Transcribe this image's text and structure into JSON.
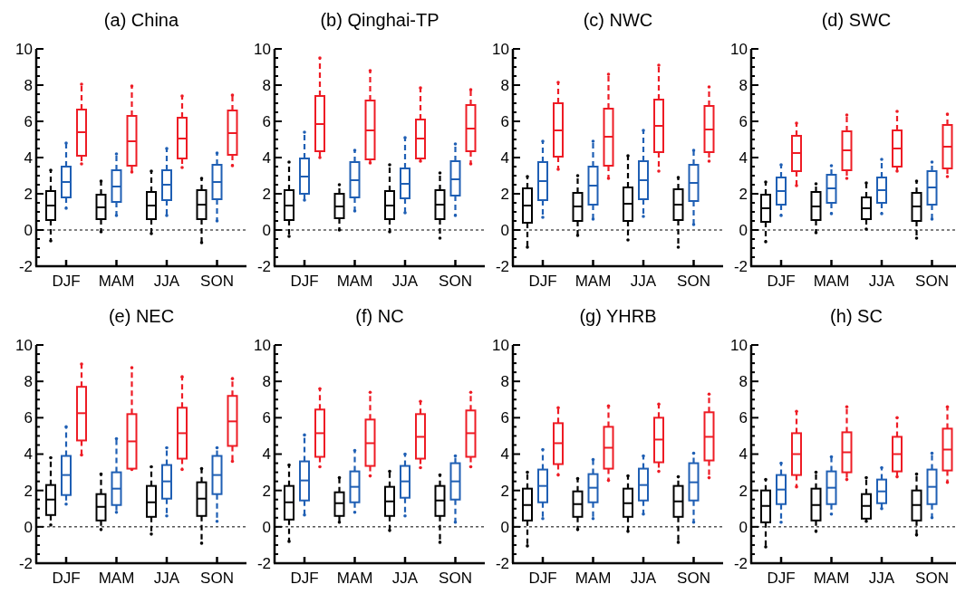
{
  "chart_data": [
    {
      "type": "box",
      "title": "(a) China",
      "categories": [
        "DJF",
        "MAM",
        "JJA",
        "SON"
      ],
      "ylim": [
        -2,
        10
      ],
      "yticks": [
        -2,
        {
          "value": -1.5,
          "label": null
        },
        {
          "value": -1,
          "label": null
        },
        {
          "value": -0.5,
          "label": null
        },
        0,
        {
          "value": 0.5,
          "label": null
        },
        {
          "value": 1,
          "label": null
        },
        {
          "value": 1.5,
          "label": null
        },
        2,
        {
          "value": 2.5,
          "label": null
        },
        {
          "value": 3,
          "label": null
        },
        {
          "value": 3.5,
          "label": null
        },
        4,
        {
          "value": 4.5,
          "label": null
        },
        {
          "value": 5,
          "label": null
        },
        {
          "value": 5.5,
          "label": null
        },
        6,
        {
          "value": 6.5,
          "label": null
        },
        {
          "value": 7,
          "label": null
        },
        {
          "value": 7.5,
          "label": null
        },
        8,
        {
          "value": 8.5,
          "label": null
        },
        {
          "value": 9,
          "label": null
        },
        {
          "value": 9.5,
          "label": null
        },
        10
      ],
      "grid": false,
      "line_style": "dashed",
      "ref_lines": [
        {
          "axis": "y",
          "value": 0,
          "color": "#000000",
          "line_style": "dashed"
        }
      ],
      "series": [
        {
          "color": "#000000",
          "boxes": [
            {
              "low": -0.6,
              "q1": 0.55,
              "median": 1.35,
              "q3": 2.15,
              "high": 3.3
            },
            {
              "low": -0.1,
              "q1": 0.6,
              "median": 1.25,
              "q3": 1.95,
              "high": 2.7
            },
            {
              "low": -0.2,
              "q1": 0.6,
              "median": 1.35,
              "q3": 2.1,
              "high": 3.25
            },
            {
              "low": -0.7,
              "q1": 0.6,
              "median": 1.4,
              "q3": 2.2,
              "high": 2.85
            }
          ]
        },
        {
          "color": "#1f5fb4",
          "boxes": [
            {
              "low": 1.2,
              "q1": 1.8,
              "median": 2.65,
              "q3": 3.5,
              "high": 4.8
            },
            {
              "low": 0.8,
              "q1": 1.55,
              "median": 2.4,
              "q3": 3.3,
              "high": 4.2
            },
            {
              "low": 0.8,
              "q1": 1.65,
              "median": 2.5,
              "q3": 3.3,
              "high": 4.5
            },
            {
              "low": 0.5,
              "q1": 1.7,
              "median": 2.65,
              "q3": 3.6,
              "high": 4.25
            }
          ]
        },
        {
          "color": "#ee1c25",
          "boxes": [
            {
              "low": 3.65,
              "q1": 4.1,
              "median": 5.4,
              "q3": 6.65,
              "high": 8.05
            },
            {
              "low": 3.2,
              "q1": 3.55,
              "median": 4.9,
              "q3": 6.3,
              "high": 7.95
            },
            {
              "low": 3.45,
              "q1": 3.95,
              "median": 5.05,
              "q3": 6.2,
              "high": 7.4
            },
            {
              "low": 3.55,
              "q1": 4.15,
              "median": 5.35,
              "q3": 6.6,
              "high": 7.45
            }
          ]
        }
      ]
    },
    {
      "type": "box",
      "title": "(b) Qinghai-TP",
      "categories": [
        "DJF",
        "MAM",
        "JJA",
        "SON"
      ],
      "ylim": [
        -2,
        10
      ],
      "yticks": [
        -2,
        {
          "value": -1.5,
          "label": null
        },
        {
          "value": -1,
          "label": null
        },
        {
          "value": -0.5,
          "label": null
        },
        0,
        {
          "value": 0.5,
          "label": null
        },
        {
          "value": 1,
          "label": null
        },
        {
          "value": 1.5,
          "label": null
        },
        2,
        {
          "value": 2.5,
          "label": null
        },
        {
          "value": 3,
          "label": null
        },
        {
          "value": 3.5,
          "label": null
        },
        4,
        {
          "value": 4.5,
          "label": null
        },
        {
          "value": 5,
          "label": null
        },
        {
          "value": 5.5,
          "label": null
        },
        6,
        {
          "value": 6.5,
          "label": null
        },
        {
          "value": 7,
          "label": null
        },
        {
          "value": 7.5,
          "label": null
        },
        8,
        {
          "value": 8.5,
          "label": null
        },
        {
          "value": 9,
          "label": null
        },
        {
          "value": 9.5,
          "label": null
        },
        10
      ],
      "grid": false,
      "line_style": "dashed",
      "ref_lines": [
        {
          "axis": "y",
          "value": 0,
          "color": "#000000",
          "line_style": "dashed"
        }
      ],
      "series": [
        {
          "color": "#000000",
          "boxes": [
            {
              "low": -0.35,
              "q1": 0.55,
              "median": 1.35,
              "q3": 2.2,
              "high": 3.75
            },
            {
              "low": 0.0,
              "q1": 0.65,
              "median": 1.3,
              "q3": 2.0,
              "high": 2.5
            },
            {
              "low": -0.1,
              "q1": 0.6,
              "median": 1.35,
              "q3": 2.15,
              "high": 3.6
            },
            {
              "low": -0.45,
              "q1": 0.6,
              "median": 1.4,
              "q3": 2.2,
              "high": 3.15
            }
          ]
        },
        {
          "color": "#1f5fb4",
          "boxes": [
            {
              "low": 1.65,
              "q1": 2.0,
              "median": 2.95,
              "q3": 3.95,
              "high": 5.4
            },
            {
              "low": 1.05,
              "q1": 1.8,
              "median": 2.75,
              "q3": 3.75,
              "high": 4.4
            },
            {
              "low": 0.95,
              "q1": 1.75,
              "median": 2.55,
              "q3": 3.4,
              "high": 5.1
            },
            {
              "low": 0.8,
              "q1": 1.9,
              "median": 2.8,
              "q3": 3.8,
              "high": 4.75
            }
          ]
        },
        {
          "color": "#ee1c25",
          "boxes": [
            {
              "low": 4.0,
              "q1": 4.35,
              "median": 5.85,
              "q3": 7.4,
              "high": 9.5
            },
            {
              "low": 3.7,
              "q1": 3.9,
              "median": 5.5,
              "q3": 7.15,
              "high": 8.8
            },
            {
              "low": 3.8,
              "q1": 3.95,
              "median": 5.05,
              "q3": 6.1,
              "high": 7.85
            },
            {
              "low": 3.65,
              "q1": 4.35,
              "median": 5.6,
              "q3": 6.9,
              "high": 7.75
            }
          ]
        }
      ]
    },
    {
      "type": "box",
      "title": "(c) NWC",
      "categories": [
        "DJF",
        "MAM",
        "JJA",
        "SON"
      ],
      "ylim": [
        -2,
        10
      ],
      "yticks": [
        -2,
        {
          "value": -1.5,
          "label": null
        },
        {
          "value": -1,
          "label": null
        },
        {
          "value": -0.5,
          "label": null
        },
        0,
        {
          "value": 0.5,
          "label": null
        },
        {
          "value": 1,
          "label": null
        },
        {
          "value": 1.5,
          "label": null
        },
        2,
        {
          "value": 2.5,
          "label": null
        },
        {
          "value": 3,
          "label": null
        },
        {
          "value": 3.5,
          "label": null
        },
        4,
        {
          "value": 4.5,
          "label": null
        },
        {
          "value": 5,
          "label": null
        },
        {
          "value": 5.5,
          "label": null
        },
        6,
        {
          "value": 6.5,
          "label": null
        },
        {
          "value": 7,
          "label": null
        },
        {
          "value": 7.5,
          "label": null
        },
        8,
        {
          "value": 8.5,
          "label": null
        },
        {
          "value": 9,
          "label": null
        },
        {
          "value": 9.5,
          "label": null
        },
        10
      ],
      "grid": false,
      "line_style": "dashed",
      "ref_lines": [
        {
          "axis": "y",
          "value": 0,
          "color": "#000000",
          "line_style": "dashed"
        }
      ],
      "series": [
        {
          "color": "#000000",
          "boxes": [
            {
              "low": -0.95,
              "q1": 0.4,
              "median": 1.35,
              "q3": 2.3,
              "high": 2.95
            },
            {
              "low": -0.3,
              "q1": 0.5,
              "median": 1.3,
              "q3": 2.05,
              "high": 3.0
            },
            {
              "low": -0.55,
              "q1": 0.5,
              "median": 1.45,
              "q3": 2.35,
              "high": 4.1
            },
            {
              "low": -0.95,
              "q1": 0.55,
              "median": 1.4,
              "q3": 2.25,
              "high": 2.9
            }
          ]
        },
        {
          "color": "#1f5fb4",
          "boxes": [
            {
              "low": 0.7,
              "q1": 1.65,
              "median": 2.7,
              "q3": 3.75,
              "high": 4.9
            },
            {
              "low": 0.6,
              "q1": 1.4,
              "median": 2.45,
              "q3": 3.5,
              "high": 4.9
            },
            {
              "low": 0.75,
              "q1": 1.7,
              "median": 2.75,
              "q3": 3.8,
              "high": 5.5
            },
            {
              "low": 0.3,
              "q1": 1.6,
              "median": 2.6,
              "q3": 3.6,
              "high": 4.4
            }
          ]
        },
        {
          "color": "#ee1c25",
          "boxes": [
            {
              "low": 3.35,
              "q1": 4.05,
              "median": 5.5,
              "q3": 7.0,
              "high": 8.15
            },
            {
              "low": 2.85,
              "q1": 3.55,
              "median": 5.15,
              "q3": 6.7,
              "high": 8.6
            },
            {
              "low": 3.25,
              "q1": 4.3,
              "median": 5.75,
              "q3": 7.2,
              "high": 9.1
            },
            {
              "low": 3.8,
              "q1": 4.3,
              "median": 5.55,
              "q3": 6.85,
              "high": 7.9
            }
          ]
        }
      ]
    },
    {
      "type": "box",
      "title": "(d) SWC",
      "categories": [
        "DJF",
        "MAM",
        "JJA",
        "SON"
      ],
      "ylim": [
        -2,
        10
      ],
      "yticks": [
        -2,
        {
          "value": -1.5,
          "label": null
        },
        {
          "value": -1,
          "label": null
        },
        {
          "value": -0.5,
          "label": null
        },
        0,
        {
          "value": 0.5,
          "label": null
        },
        {
          "value": 1,
          "label": null
        },
        {
          "value": 1.5,
          "label": null
        },
        2,
        {
          "value": 2.5,
          "label": null
        },
        {
          "value": 3,
          "label": null
        },
        {
          "value": 3.5,
          "label": null
        },
        4,
        {
          "value": 4.5,
          "label": null
        },
        {
          "value": 5,
          "label": null
        },
        {
          "value": 5.5,
          "label": null
        },
        6,
        {
          "value": 6.5,
          "label": null
        },
        {
          "value": 7,
          "label": null
        },
        {
          "value": 7.5,
          "label": null
        },
        8,
        {
          "value": 8.5,
          "label": null
        },
        {
          "value": 9,
          "label": null
        },
        {
          "value": 9.5,
          "label": null
        },
        10
      ],
      "grid": false,
      "line_style": "dashed",
      "ref_lines": [
        {
          "axis": "y",
          "value": 0,
          "color": "#000000",
          "line_style": "dashed"
        }
      ],
      "series": [
        {
          "color": "#000000",
          "boxes": [
            {
              "low": -0.65,
              "q1": 0.45,
              "median": 1.2,
              "q3": 1.95,
              "high": 2.65
            },
            {
              "low": -0.15,
              "q1": 0.55,
              "median": 1.3,
              "q3": 2.1,
              "high": 2.55
            },
            {
              "low": 0.05,
              "q1": 0.6,
              "median": 1.2,
              "q3": 1.8,
              "high": 2.6
            },
            {
              "low": -0.45,
              "q1": 0.5,
              "median": 1.3,
              "q3": 2.05,
              "high": 2.7
            }
          ]
        },
        {
          "color": "#1f5fb4",
          "boxes": [
            {
              "low": 0.8,
              "q1": 1.4,
              "median": 2.15,
              "q3": 2.9,
              "high": 3.6
            },
            {
              "low": 0.9,
              "q1": 1.5,
              "median": 2.3,
              "q3": 3.05,
              "high": 3.55
            },
            {
              "low": 0.9,
              "q1": 1.5,
              "median": 2.2,
              "q3": 2.9,
              "high": 3.9
            },
            {
              "low": 0.6,
              "q1": 1.4,
              "median": 2.35,
              "q3": 3.25,
              "high": 3.75
            }
          ]
        },
        {
          "color": "#ee1c25",
          "boxes": [
            {
              "low": 2.45,
              "q1": 3.25,
              "median": 4.25,
              "q3": 5.2,
              "high": 5.9
            },
            {
              "low": 2.85,
              "q1": 3.3,
              "median": 4.4,
              "q3": 5.45,
              "high": 6.35
            },
            {
              "low": 3.25,
              "q1": 3.5,
              "median": 4.5,
              "q3": 5.5,
              "high": 6.55
            },
            {
              "low": 2.95,
              "q1": 3.4,
              "median": 4.6,
              "q3": 5.8,
              "high": 6.4
            }
          ]
        }
      ]
    },
    {
      "type": "box",
      "title": "(e) NEC",
      "categories": [
        "DJF",
        "MAM",
        "JJA",
        "SON"
      ],
      "ylim": [
        -2,
        10
      ],
      "yticks": [
        -2,
        {
          "value": -1.5,
          "label": null
        },
        {
          "value": -1,
          "label": null
        },
        {
          "value": -0.5,
          "label": null
        },
        0,
        {
          "value": 0.5,
          "label": null
        },
        {
          "value": 1,
          "label": null
        },
        {
          "value": 1.5,
          "label": null
        },
        2,
        {
          "value": 2.5,
          "label": null
        },
        {
          "value": 3,
          "label": null
        },
        {
          "value": 3.5,
          "label": null
        },
        4,
        {
          "value": 4.5,
          "label": null
        },
        {
          "value": 5,
          "label": null
        },
        {
          "value": 5.5,
          "label": null
        },
        6,
        {
          "value": 6.5,
          "label": null
        },
        {
          "value": 7,
          "label": null
        },
        {
          "value": 7.5,
          "label": null
        },
        8,
        {
          "value": 8.5,
          "label": null
        },
        {
          "value": 9,
          "label": null
        },
        {
          "value": 9.5,
          "label": null
        },
        10
      ],
      "grid": false,
      "line_style": "dashed",
      "ref_lines": [
        {
          "axis": "y",
          "value": 0,
          "color": "#000000",
          "line_style": "dashed"
        }
      ],
      "series": [
        {
          "color": "#000000",
          "boxes": [
            {
              "low": 0.1,
              "q1": 0.65,
              "median": 1.5,
              "q3": 2.3,
              "high": 3.8
            },
            {
              "low": -0.15,
              "q1": 0.35,
              "median": 1.1,
              "q3": 1.8,
              "high": 2.9
            },
            {
              "low": -0.4,
              "q1": 0.55,
              "median": 1.35,
              "q3": 2.25,
              "high": 3.3
            },
            {
              "low": -0.9,
              "q1": 0.6,
              "median": 1.55,
              "q3": 2.45,
              "high": 3.2
            }
          ]
        },
        {
          "color": "#1f5fb4",
          "boxes": [
            {
              "low": 1.25,
              "q1": 1.75,
              "median": 2.85,
              "q3": 3.9,
              "high": 5.5
            },
            {
              "low": 0.8,
              "q1": 1.2,
              "median": 2.1,
              "q3": 3.0,
              "high": 4.85
            },
            {
              "low": 0.6,
              "q1": 1.55,
              "median": 2.5,
              "q3": 3.4,
              "high": 4.35
            },
            {
              "low": 0.3,
              "q1": 1.8,
              "median": 2.85,
              "q3": 3.9,
              "high": 4.35
            }
          ]
        },
        {
          "color": "#ee1c25",
          "boxes": [
            {
              "low": 3.95,
              "q1": 4.75,
              "median": 6.25,
              "q3": 7.7,
              "high": 8.95
            },
            {
              "low": 3.15,
              "q1": 3.2,
              "median": 4.7,
              "q3": 6.2,
              "high": 8.75
            },
            {
              "low": 3.15,
              "q1": 3.75,
              "median": 5.15,
              "q3": 6.55,
              "high": 8.25
            },
            {
              "low": 3.6,
              "q1": 4.45,
              "median": 5.8,
              "q3": 7.2,
              "high": 8.15
            }
          ]
        }
      ]
    },
    {
      "type": "box",
      "title": "(f) NC",
      "categories": [
        "DJF",
        "MAM",
        "JJA",
        "SON"
      ],
      "ylim": [
        -2,
        10
      ],
      "yticks": [
        -2,
        {
          "value": -1.5,
          "label": null
        },
        {
          "value": -1,
          "label": null
        },
        {
          "value": -0.5,
          "label": null
        },
        0,
        {
          "value": 0.5,
          "label": null
        },
        {
          "value": 1,
          "label": null
        },
        {
          "value": 1.5,
          "label": null
        },
        2,
        {
          "value": 2.5,
          "label": null
        },
        {
          "value": 3,
          "label": null
        },
        {
          "value": 3.5,
          "label": null
        },
        4,
        {
          "value": 4.5,
          "label": null
        },
        {
          "value": 5,
          "label": null
        },
        {
          "value": 5.5,
          "label": null
        },
        6,
        {
          "value": 6.5,
          "label": null
        },
        {
          "value": 7,
          "label": null
        },
        {
          "value": 7.5,
          "label": null
        },
        8,
        {
          "value": 8.5,
          "label": null
        },
        {
          "value": 9,
          "label": null
        },
        {
          "value": 9.5,
          "label": null
        },
        10
      ],
      "grid": false,
      "line_style": "dashed",
      "ref_lines": [
        {
          "axis": "y",
          "value": 0,
          "color": "#000000",
          "line_style": "dashed"
        }
      ],
      "series": [
        {
          "color": "#000000",
          "boxes": [
            {
              "low": -0.8,
              "q1": 0.4,
              "median": 1.35,
              "q3": 2.25,
              "high": 3.4
            },
            {
              "low": 0.25,
              "q1": 0.6,
              "median": 1.3,
              "q3": 1.9,
              "high": 2.7
            },
            {
              "low": -0.2,
              "q1": 0.6,
              "median": 1.4,
              "q3": 2.2,
              "high": 3.05
            },
            {
              "low": -0.85,
              "q1": 0.6,
              "median": 1.45,
              "q3": 2.25,
              "high": 2.85
            }
          ]
        },
        {
          "color": "#1f5fb4",
          "boxes": [
            {
              "low": 0.65,
              "q1": 1.45,
              "median": 2.55,
              "q3": 3.6,
              "high": 5.05
            },
            {
              "low": 0.8,
              "q1": 1.35,
              "median": 2.2,
              "q3": 3.05,
              "high": 4.2
            },
            {
              "low": 0.6,
              "q1": 1.6,
              "median": 2.5,
              "q3": 3.35,
              "high": 4.0
            },
            {
              "low": 0.25,
              "q1": 1.5,
              "median": 2.5,
              "q3": 3.5,
              "high": 3.9
            }
          ]
        },
        {
          "color": "#ee1c25",
          "boxes": [
            {
              "low": 3.3,
              "q1": 3.85,
              "median": 5.15,
              "q3": 6.45,
              "high": 7.6
            },
            {
              "low": 2.8,
              "q1": 3.35,
              "median": 4.6,
              "q3": 5.9,
              "high": 7.4
            },
            {
              "low": 3.25,
              "q1": 3.75,
              "median": 4.95,
              "q3": 6.2,
              "high": 6.9
            },
            {
              "low": 3.3,
              "q1": 3.85,
              "median": 5.15,
              "q3": 6.4,
              "high": 7.4
            }
          ]
        }
      ]
    },
    {
      "type": "box",
      "title": "(g) YHRB",
      "categories": [
        "DJF",
        "MAM",
        "JJA",
        "SON"
      ],
      "ylim": [
        -2,
        10
      ],
      "yticks": [
        -2,
        {
          "value": -1.5,
          "label": null
        },
        {
          "value": -1,
          "label": null
        },
        {
          "value": -0.5,
          "label": null
        },
        0,
        {
          "value": 0.5,
          "label": null
        },
        {
          "value": 1,
          "label": null
        },
        {
          "value": 1.5,
          "label": null
        },
        2,
        {
          "value": 2.5,
          "label": null
        },
        {
          "value": 3,
          "label": null
        },
        {
          "value": 3.5,
          "label": null
        },
        4,
        {
          "value": 4.5,
          "label": null
        },
        {
          "value": 5,
          "label": null
        },
        {
          "value": 5.5,
          "label": null
        },
        6,
        {
          "value": 6.5,
          "label": null
        },
        {
          "value": 7,
          "label": null
        },
        {
          "value": 7.5,
          "label": null
        },
        8,
        {
          "value": 8.5,
          "label": null
        },
        {
          "value": 9,
          "label": null
        },
        {
          "value": 9.5,
          "label": null
        },
        10
      ],
      "grid": false,
      "line_style": "dashed",
      "ref_lines": [
        {
          "axis": "y",
          "value": 0,
          "color": "#000000",
          "line_style": "dashed"
        }
      ],
      "series": [
        {
          "color": "#000000",
          "boxes": [
            {
              "low": -1.05,
              "q1": 0.35,
              "median": 1.2,
              "q3": 2.1,
              "high": 3.0
            },
            {
              "low": -0.15,
              "q1": 0.55,
              "median": 1.25,
              "q3": 1.95,
              "high": 2.65
            },
            {
              "low": -0.25,
              "q1": 0.55,
              "median": 1.3,
              "q3": 2.1,
              "high": 2.8
            },
            {
              "low": -0.85,
              "q1": 0.55,
              "median": 1.4,
              "q3": 2.25,
              "high": 2.75
            }
          ]
        },
        {
          "color": "#1f5fb4",
          "boxes": [
            {
              "low": 0.45,
              "q1": 1.35,
              "median": 2.25,
              "q3": 3.15,
              "high": 4.25
            },
            {
              "low": 0.45,
              "q1": 1.35,
              "median": 2.15,
              "q3": 2.9,
              "high": 3.7
            },
            {
              "low": 0.7,
              "q1": 1.45,
              "median": 2.3,
              "q3": 3.2,
              "high": 3.9
            },
            {
              "low": 0.25,
              "q1": 1.45,
              "median": 2.45,
              "q3": 3.5,
              "high": 4.05
            }
          ]
        },
        {
          "color": "#ee1c25",
          "boxes": [
            {
              "low": 2.85,
              "q1": 3.45,
              "median": 4.6,
              "q3": 5.7,
              "high": 6.55
            },
            {
              "low": 2.55,
              "q1": 3.2,
              "median": 4.35,
              "q3": 5.5,
              "high": 6.65
            },
            {
              "low": 3.05,
              "q1": 3.55,
              "median": 4.8,
              "q3": 6.0,
              "high": 6.75
            },
            {
              "low": 2.7,
              "q1": 3.65,
              "median": 4.95,
              "q3": 6.3,
              "high": 7.3
            }
          ]
        }
      ]
    },
    {
      "type": "box",
      "title": "(h) SC",
      "categories": [
        "DJF",
        "MAM",
        "JJA",
        "SON"
      ],
      "ylim": [
        -2,
        10
      ],
      "yticks": [
        -2,
        {
          "value": -1.5,
          "label": null
        },
        {
          "value": -1,
          "label": null
        },
        {
          "value": -0.5,
          "label": null
        },
        0,
        {
          "value": 0.5,
          "label": null
        },
        {
          "value": 1,
          "label": null
        },
        {
          "value": 1.5,
          "label": null
        },
        2,
        {
          "value": 2.5,
          "label": null
        },
        {
          "value": 3,
          "label": null
        },
        {
          "value": 3.5,
          "label": null
        },
        4,
        {
          "value": 4.5,
          "label": null
        },
        {
          "value": 5,
          "label": null
        },
        {
          "value": 5.5,
          "label": null
        },
        6,
        {
          "value": 6.5,
          "label": null
        },
        {
          "value": 7,
          "label": null
        },
        {
          "value": 7.5,
          "label": null
        },
        8,
        {
          "value": 8.5,
          "label": null
        },
        {
          "value": 9,
          "label": null
        },
        {
          "value": 9.5,
          "label": null
        },
        10
      ],
      "grid": false,
      "line_style": "dashed",
      "ref_lines": [
        {
          "axis": "y",
          "value": 0,
          "color": "#000000",
          "line_style": "dashed"
        }
      ],
      "series": [
        {
          "color": "#000000",
          "boxes": [
            {
              "low": -1.1,
              "q1": 0.25,
              "median": 1.15,
              "q3": 2.0,
              "high": 2.6
            },
            {
              "low": -0.25,
              "q1": 0.35,
              "median": 1.2,
              "q3": 2.1,
              "high": 3.0
            },
            {
              "low": 0.3,
              "q1": 0.45,
              "median": 1.15,
              "q3": 1.8,
              "high": 2.7
            },
            {
              "low": -0.45,
              "q1": 0.35,
              "median": 1.2,
              "q3": 2.0,
              "high": 2.9
            }
          ]
        },
        {
          "color": "#1f5fb4",
          "boxes": [
            {
              "low": 0.25,
              "q1": 1.25,
              "median": 2.05,
              "q3": 2.85,
              "high": 3.5
            },
            {
              "low": 0.7,
              "q1": 1.25,
              "median": 2.15,
              "q3": 3.05,
              "high": 3.85
            },
            {
              "low": 1.0,
              "q1": 1.3,
              "median": 1.95,
              "q3": 2.6,
              "high": 3.25
            },
            {
              "low": 0.5,
              "q1": 1.25,
              "median": 2.2,
              "q3": 3.15,
              "high": 4.05
            }
          ]
        },
        {
          "color": "#ee1c25",
          "boxes": [
            {
              "low": 2.2,
              "q1": 2.85,
              "median": 4.0,
              "q3": 5.15,
              "high": 6.35
            },
            {
              "low": 2.6,
              "q1": 3.0,
              "median": 4.1,
              "q3": 5.2,
              "high": 6.6
            },
            {
              "low": 2.75,
              "q1": 3.05,
              "median": 4.0,
              "q3": 4.95,
              "high": 6.0
            },
            {
              "low": 2.45,
              "q1": 3.1,
              "median": 4.25,
              "q3": 5.4,
              "high": 6.6
            }
          ]
        }
      ]
    }
  ]
}
